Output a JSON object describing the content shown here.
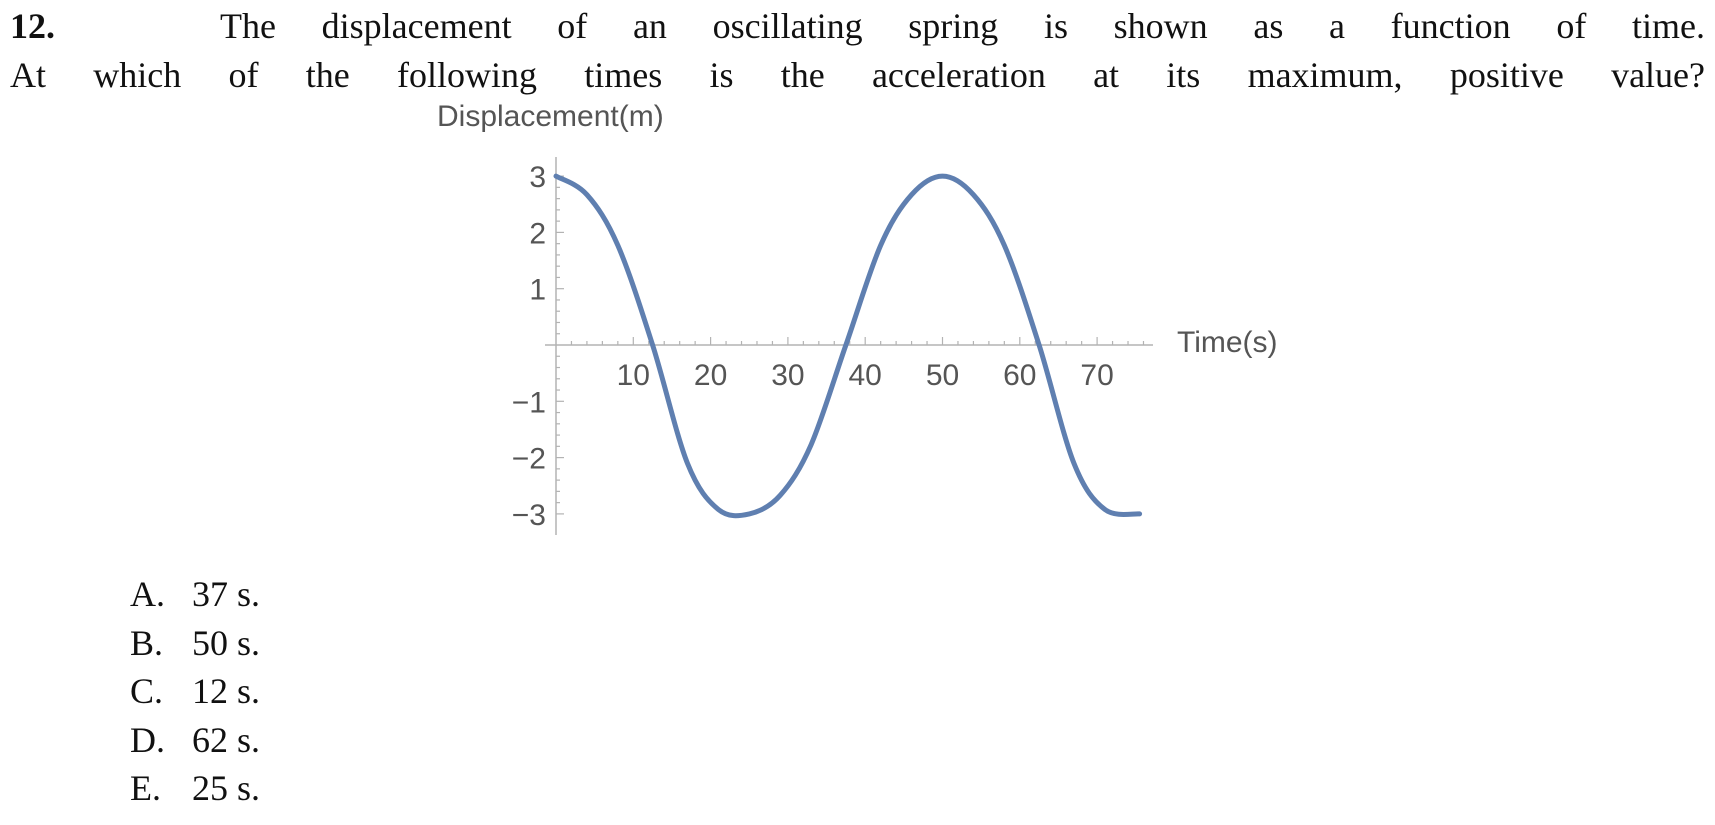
{
  "question": {
    "number": "12.",
    "line1": "The displacement of an oscillating spring is shown as a function of time.",
    "line2": "At which of the following times is the acceleration at its maximum, positive value?"
  },
  "answers": [
    {
      "letter": "A.",
      "text": "37 s."
    },
    {
      "letter": "B.",
      "text": "50 s."
    },
    {
      "letter": "C.",
      "text": "12 s."
    },
    {
      "letter": "D.",
      "text": "62 s."
    },
    {
      "letter": "E.",
      "text": "25 s."
    }
  ],
  "chart_data": {
    "type": "line",
    "title": "",
    "xlabel": "Time(s)",
    "ylabel": "Displacement(m)",
    "xlim": [
      0,
      76
    ],
    "ylim": [
      -3,
      3
    ],
    "x_ticks": [
      10,
      20,
      30,
      40,
      50,
      60,
      70
    ],
    "y_ticks": [
      3,
      2,
      1,
      -1,
      -2,
      -3
    ],
    "x_tick_labels": [
      "10",
      "20",
      "30",
      "40",
      "50",
      "60",
      "70"
    ],
    "y_tick_labels": [
      "3",
      "2",
      "1",
      "−1",
      "−2",
      "−3"
    ],
    "grid": false,
    "series_color": "#5f7fb0",
    "series": [
      {
        "x": [
          0,
          4,
          8,
          12.5,
          17,
          21,
          25,
          29,
          33,
          37.5,
          42,
          46,
          50,
          54,
          58,
          62.5,
          67,
          71,
          75.5
        ],
        "values": [
          3,
          2.67,
          1.77,
          0,
          -2.1,
          -2.92,
          -3,
          -2.67,
          -1.77,
          0,
          1.77,
          2.67,
          3,
          2.67,
          1.77,
          0,
          -2.1,
          -2.92,
          -3
        ]
      }
    ]
  }
}
